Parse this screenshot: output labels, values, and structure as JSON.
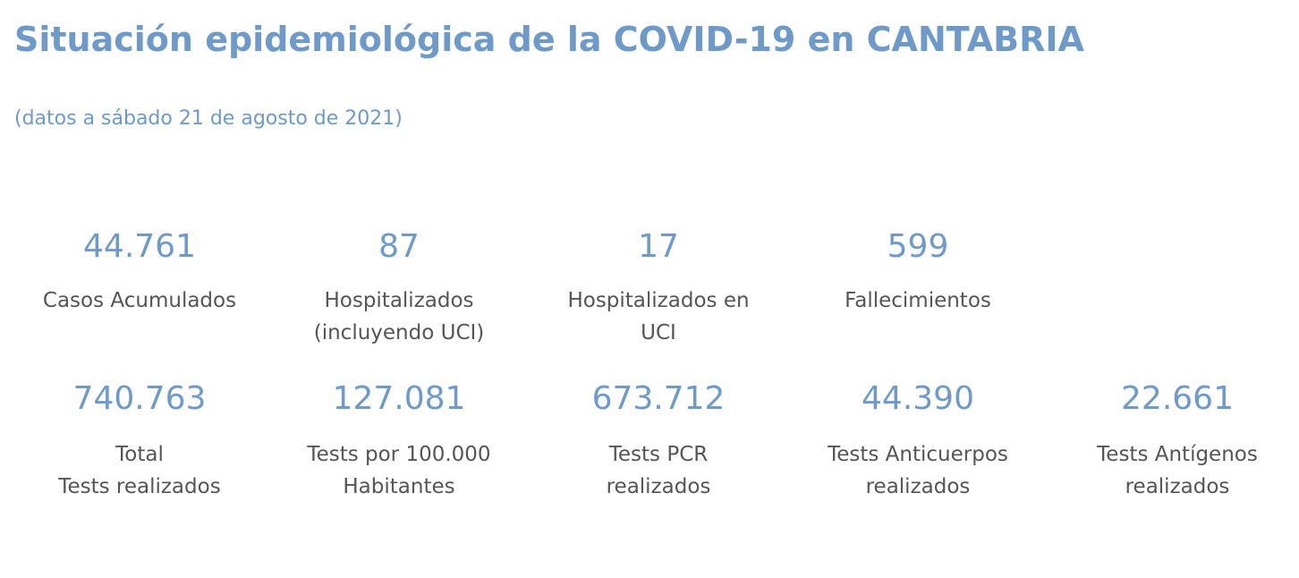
{
  "header": {
    "title": "Situación epidemiológica de la COVID-19 en CANTABRIA",
    "subtitle": "(datos a sábado 21 de agosto de 2021)"
  },
  "stats_row1": [
    {
      "value": "44.761",
      "label": "Casos Acumulados"
    },
    {
      "value": "87",
      "label": "Hospitalizados\n(incluyendo UCI)"
    },
    {
      "value": "17",
      "label": "Hospitalizados en\nUCI"
    },
    {
      "value": "599",
      "label": "Fallecimientos"
    }
  ],
  "stats_row2": [
    {
      "value": "740.763",
      "label": "Total\nTests realizados"
    },
    {
      "value": "127.081",
      "label": "Tests por 100.000\nHabitantes"
    },
    {
      "value": "673.712",
      "label": " Tests PCR\nrealizados"
    },
    {
      "value": "44.390",
      "label": "Tests Anticuerpos\nrealizados"
    },
    {
      "value": "22.661",
      "label": "Tests Antígenos\nrealizados"
    }
  ],
  "colors": {
    "accent": "#6d9acb",
    "text": "#555555",
    "background": "#ffffff"
  }
}
